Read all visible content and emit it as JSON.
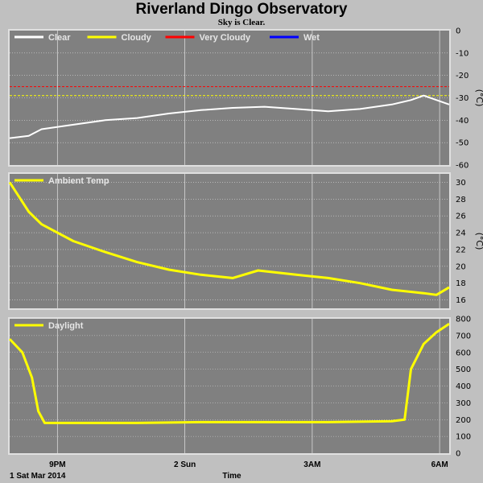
{
  "header": {
    "title": "Riverland Dingo Observatory",
    "subtitle": "Sky is Clear."
  },
  "footer": {
    "date_label": "1 Sat Mar 2014",
    "x_axis_title": "Time"
  },
  "colors": {
    "background": "#c0c0c0",
    "plot_bg": "#808080",
    "clear": "#ffffff",
    "cloudy": "#ffff00",
    "very_cloudy": "#ff0000",
    "wet": "#0000ff",
    "grid": "#d8d8d8"
  },
  "chart_data": [
    {
      "type": "line",
      "name": "sky-temperature",
      "legend": [
        {
          "name": "Clear",
          "color": "#ffffff"
        },
        {
          "name": "Cloudy",
          "color": "#ffff00"
        },
        {
          "name": "Very Cloudy",
          "color": "#ff0000"
        },
        {
          "name": "Wet",
          "color": "#0000ff"
        }
      ],
      "legend_placement": "top-left",
      "ylabel": "(°C)",
      "ylim": [
        -60,
        0
      ],
      "yticks": [
        0,
        -10,
        -20,
        -30,
        -40,
        -50,
        -60
      ],
      "thresholds": [
        {
          "name": "Very Cloudy",
          "value": -25,
          "color": "#ff0000"
        },
        {
          "name": "Cloudy",
          "value": -29,
          "color": "#ffff00"
        }
      ],
      "x": [
        0,
        0.3,
        0.5,
        1.0,
        1.5,
        2.0,
        2.5,
        3.0,
        3.5,
        4.0,
        4.5,
        5.0,
        5.5,
        6.0,
        6.3,
        6.5,
        6.9
      ],
      "values": [
        -48,
        -47,
        -44,
        -42,
        -40,
        -39,
        -37,
        -35.5,
        -34.5,
        -34,
        -35,
        -36,
        -35,
        -33,
        -31,
        -29,
        -33
      ],
      "grid": true
    },
    {
      "type": "line",
      "name": "ambient-temperature",
      "legend": [
        {
          "name": "Ambient Temp",
          "color": "#ffff00"
        }
      ],
      "legend_placement": "top-left",
      "ylabel": "(°C)",
      "ylim": [
        15,
        31
      ],
      "yticks": [
        30,
        28,
        26,
        24,
        22,
        20,
        18,
        16
      ],
      "x": [
        0,
        0.3,
        0.5,
        1.0,
        1.5,
        2.0,
        2.5,
        3.0,
        3.5,
        3.9,
        4.5,
        5.0,
        5.5,
        6.0,
        6.5,
        6.7,
        6.9
      ],
      "values": [
        30,
        26.5,
        25,
        23,
        21.7,
        20.5,
        19.6,
        19,
        18.6,
        19.5,
        19,
        18.6,
        18,
        17.2,
        16.8,
        16.6,
        17.5
      ],
      "grid": true
    },
    {
      "type": "line",
      "name": "daylight",
      "legend": [
        {
          "name": "Daylight",
          "color": "#ffff00"
        }
      ],
      "legend_placement": "top-left",
      "ylabel": "",
      "ylim": [
        0,
        800
      ],
      "yticks": [
        800,
        700,
        600,
        500,
        400,
        300,
        200,
        100,
        0
      ],
      "x": [
        0,
        0.2,
        0.35,
        0.45,
        0.55,
        1.0,
        2.0,
        3.0,
        4.0,
        5.0,
        6.0,
        6.2,
        6.3,
        6.5,
        6.7,
        6.9
      ],
      "values": [
        680,
        600,
        450,
        250,
        180,
        180,
        180,
        185,
        185,
        185,
        190,
        200,
        500,
        650,
        720,
        770
      ],
      "grid": true
    }
  ],
  "x_axis": {
    "start": 0,
    "end": 6.9,
    "ticks": [
      {
        "value": 0.75,
        "label": "9PM"
      },
      {
        "value": 2.75,
        "label": "2 Sun"
      },
      {
        "value": 4.75,
        "label": "3AM"
      },
      {
        "value": 6.75,
        "label": "6AM"
      }
    ]
  }
}
